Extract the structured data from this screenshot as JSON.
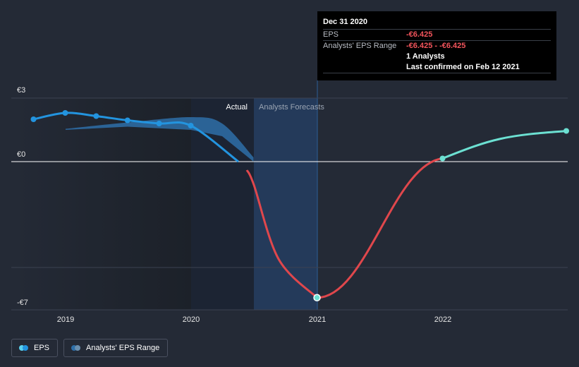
{
  "tooltip": {
    "title": "Dec 31 2020",
    "eps_label": "EPS",
    "eps_value": "-€6.425",
    "range_label": "Analysts' EPS Range",
    "range_value": "-€6.425 - -€6.425",
    "analysts": "1 Analysts",
    "confirmed": "Last confirmed on Feb 12 2021"
  },
  "sections": {
    "actual": "Actual",
    "forecast": "Analysts Forecasts"
  },
  "legend": {
    "eps": "EPS",
    "range": "Analysts' EPS Range"
  },
  "colors": {
    "eps_actual": "#2394df",
    "eps_forecast_negative": "#e0474c",
    "eps_forecast_positive": "#6ce0d2",
    "range_band": "#2e6fa8"
  },
  "chart_data": {
    "type": "line",
    "ylabel_ticks": [
      "€3",
      "€0",
      "-€7"
    ],
    "ylim": [
      -7,
      3
    ],
    "xlim": [
      "2018-08-01",
      "2022-12-31"
    ],
    "x_ticks": [
      "2019",
      "2020",
      "2021",
      "2022"
    ],
    "series": [
      {
        "name": "EPS",
        "kind": "actual",
        "points": [
          {
            "date": "2018-09-30",
            "value": 2.0
          },
          {
            "date": "2018-12-31",
            "value": 2.3
          },
          {
            "date": "2019-03-31",
            "value": 2.15
          },
          {
            "date": "2019-06-30",
            "value": 1.95
          },
          {
            "date": "2019-09-30",
            "value": 1.8
          },
          {
            "date": "2019-12-31",
            "value": 1.7
          }
        ]
      },
      {
        "name": "EPS",
        "kind": "forecast",
        "points": [
          {
            "date": "2020-12-31",
            "value": -6.425
          },
          {
            "date": "2021-12-31",
            "value": 0.15
          },
          {
            "date": "2022-12-31",
            "value": 1.45
          }
        ]
      },
      {
        "name": "Analysts' EPS Range",
        "kind": "range",
        "points": [
          {
            "date": "2019-01-01",
            "low": 1.5,
            "high": 1.55
          },
          {
            "date": "2019-06-30",
            "low": 1.65,
            "high": 1.85
          },
          {
            "date": "2019-12-31",
            "low": 1.5,
            "high": 2.1
          },
          {
            "date": "2020-03-31",
            "low": 1.2,
            "high": 1.8
          },
          {
            "date": "2020-06-30",
            "low": 0,
            "high": 0.2
          }
        ]
      }
    ],
    "highlight": {
      "date": "2020-12-31",
      "value": -6.425
    }
  }
}
